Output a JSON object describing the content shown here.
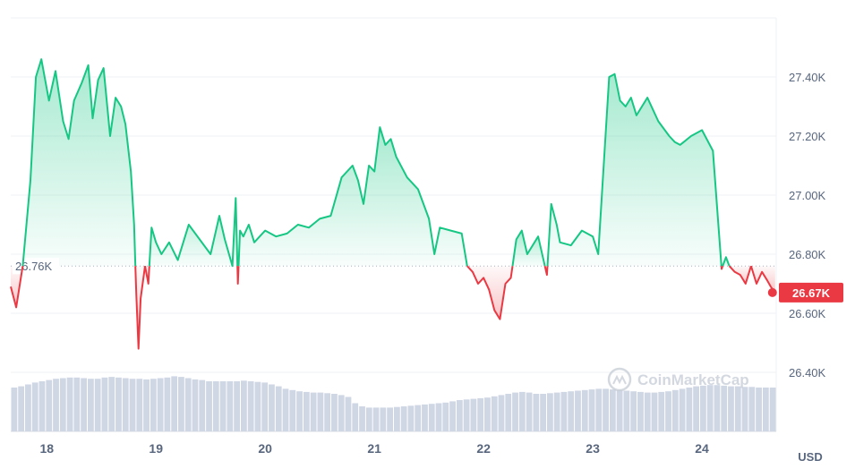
{
  "chart_data": {
    "type": "area",
    "currency_label": "USD",
    "watermark": "CoinMarketCap",
    "reference_price": 26760,
    "reference_label": "26.76K",
    "current_price": 26670,
    "current_label": "26.67K",
    "colors": {
      "up": "#16c784",
      "down": "#ea3943",
      "grid": "#eff2f5",
      "volume": "#cfd6e4"
    },
    "grid": true,
    "ylim": [
      26200,
      27600
    ],
    "y_ticks": [
      {
        "value": 26400,
        "label": "26.40K"
      },
      {
        "value": 26600,
        "label": "26.60K"
      },
      {
        "value": 26800,
        "label": "26.80K"
      },
      {
        "value": 27000,
        "label": "27.00K"
      },
      {
        "value": 27200,
        "label": "27.20K"
      },
      {
        "value": 27400,
        "label": "27.40K"
      }
    ],
    "xlim": [
      17.67,
      24.68
    ],
    "x_ticks": [
      {
        "value": 18,
        "label": "18"
      },
      {
        "value": 19,
        "label": "19"
      },
      {
        "value": 20,
        "label": "20"
      },
      {
        "value": 21,
        "label": "21"
      },
      {
        "value": 22,
        "label": "22"
      },
      {
        "value": 23,
        "label": "23"
      },
      {
        "value": 24,
        "label": "24"
      }
    ],
    "series": [
      {
        "x": [
          17.67,
          17.72,
          17.78,
          17.85,
          17.9,
          17.95,
          18.02,
          18.08,
          18.15,
          18.2,
          18.25,
          18.32,
          18.38,
          18.42,
          18.47,
          18.52,
          18.58,
          18.63,
          18.68,
          18.72,
          18.77,
          18.8,
          18.82,
          18.84,
          18.86,
          18.9,
          18.93,
          18.96,
          19.0,
          19.05,
          19.12,
          19.2,
          19.3,
          19.4,
          19.5,
          19.58,
          19.63,
          19.7,
          19.73,
          19.75,
          19.77,
          19.8,
          19.85,
          19.9,
          20.0,
          20.1,
          20.2,
          20.3,
          20.4,
          20.5,
          20.6,
          20.7,
          20.8,
          20.85,
          20.9,
          20.95,
          21.0,
          21.05,
          21.1,
          21.15,
          21.2,
          21.3,
          21.4,
          21.5,
          21.55,
          21.6,
          21.7,
          21.8,
          21.85,
          21.9,
          21.95,
          22.0,
          22.05,
          22.1,
          22.15,
          22.2,
          22.25,
          22.3,
          22.35,
          22.4,
          22.5,
          22.58,
          22.62,
          22.67,
          22.7,
          22.8,
          22.9,
          23.0,
          23.05,
          23.1,
          23.15,
          23.2,
          23.25,
          23.3,
          23.35,
          23.4,
          23.5,
          23.6,
          23.7,
          23.75,
          23.8,
          23.9,
          24.0,
          24.1,
          24.18,
          24.22,
          24.25,
          24.3,
          24.35,
          24.4,
          24.45,
          24.5,
          24.55,
          24.6,
          24.63,
          24.67
        ],
        "y": [
          26690,
          26620,
          26760,
          27050,
          27400,
          27460,
          27320,
          27420,
          27250,
          27190,
          27320,
          27380,
          27440,
          27260,
          27390,
          27430,
          27200,
          27330,
          27300,
          27240,
          27080,
          26900,
          26660,
          26480,
          26650,
          26760,
          26700,
          26890,
          26840,
          26800,
          26840,
          26780,
          26900,
          26850,
          26800,
          26930,
          26850,
          26760,
          26990,
          26700,
          26880,
          26860,
          26900,
          26840,
          26880,
          26860,
          26870,
          26900,
          26890,
          26920,
          26930,
          27060,
          27100,
          27050,
          26970,
          27100,
          27080,
          27230,
          27170,
          27190,
          27130,
          27060,
          27020,
          26920,
          26800,
          26890,
          26880,
          26870,
          26760,
          26740,
          26700,
          26720,
          26680,
          26610,
          26580,
          26700,
          26720,
          26850,
          26880,
          26800,
          26860,
          26730,
          26970,
          26900,
          26840,
          26830,
          26880,
          26860,
          26800,
          27100,
          27400,
          27410,
          27320,
          27300,
          27330,
          27270,
          27330,
          27250,
          27200,
          27180,
          27170,
          27200,
          27220,
          27150,
          26750,
          26790,
          26760,
          26740,
          26730,
          26700,
          26760,
          26700,
          26740,
          26710,
          26690,
          26670
        ]
      }
    ],
    "volume": [
      0.7,
      0.72,
      0.75,
      0.78,
      0.8,
      0.82,
      0.84,
      0.85,
      0.86,
      0.86,
      0.85,
      0.84,
      0.84,
      0.86,
      0.87,
      0.86,
      0.85,
      0.84,
      0.84,
      0.83,
      0.84,
      0.85,
      0.86,
      0.88,
      0.87,
      0.85,
      0.83,
      0.82,
      0.8,
      0.8,
      0.8,
      0.8,
      0.8,
      0.81,
      0.8,
      0.79,
      0.78,
      0.75,
      0.72,
      0.68,
      0.66,
      0.64,
      0.63,
      0.62,
      0.62,
      0.61,
      0.6,
      0.58,
      0.55,
      0.45,
      0.4,
      0.38,
      0.38,
      0.38,
      0.38,
      0.39,
      0.4,
      0.41,
      0.42,
      0.43,
      0.44,
      0.45,
      0.46,
      0.48,
      0.5,
      0.51,
      0.52,
      0.53,
      0.54,
      0.56,
      0.58,
      0.6,
      0.62,
      0.63,
      0.62,
      0.6,
      0.6,
      0.61,
      0.62,
      0.63,
      0.64,
      0.65,
      0.66,
      0.67,
      0.68,
      0.68,
      0.67,
      0.66,
      0.65,
      0.64,
      0.63,
      0.62,
      0.62,
      0.63,
      0.64,
      0.66,
      0.68,
      0.7,
      0.72,
      0.73,
      0.74,
      0.74,
      0.73,
      0.72,
      0.72,
      0.71,
      0.71,
      0.7,
      0.7,
      0.7
    ]
  }
}
